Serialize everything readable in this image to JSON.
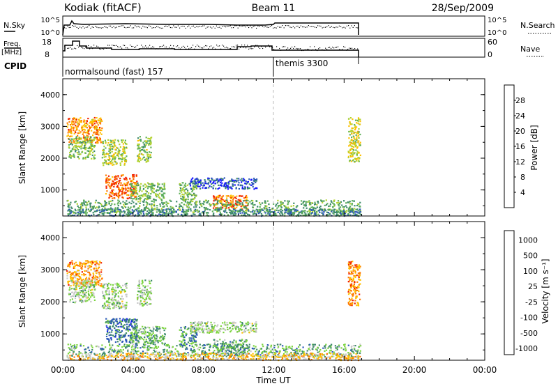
{
  "header": {
    "station": "Kodiak (fitACF)",
    "beam": "Beam 11",
    "date": "28/Sep/2009"
  },
  "top_panels": {
    "nsky": {
      "label": "N.Sky",
      "ticks": [
        "10^5",
        "10^0"
      ]
    },
    "nsearch": {
      "label": "N.Search",
      "ticks": [
        "10^5",
        "10^0"
      ]
    },
    "freq": {
      "label_line1": "Freq.",
      "label_line2": "[MHz]",
      "ticks": [
        "18",
        "8"
      ]
    },
    "nave": {
      "label": "Nave",
      "ticks": [
        "60",
        "0"
      ]
    },
    "cpid": {
      "label": "CPID",
      "modes": [
        {
          "name": "normalsound (fast) 157"
        },
        {
          "name": "themis 3300"
        }
      ]
    }
  },
  "chart_data": [
    {
      "type": "heatmap",
      "title": "",
      "ylabel": "Slant Range [km]",
      "xlabel": "",
      "xlim": [
        0,
        24
      ],
      "ylim": [
        180,
        4500
      ],
      "y_ticks": [
        "1000",
        "2000",
        "3000",
        "4000"
      ],
      "x_ticks": [
        "00:00",
        "04:00",
        "08:00",
        "12:00",
        "16:00",
        "20:00",
        "00:00"
      ],
      "colorbar": {
        "label": "Power [dB]",
        "ticks": [
          "4",
          "8",
          "12",
          "16",
          "20",
          "24",
          "28"
        ],
        "colors": [
          "#1414ff",
          "#2c58b8",
          "#3f8a6b",
          "#5fb05a",
          "#b3d32f",
          "#ffc000",
          "#ff7a00",
          "#f01e00"
        ]
      },
      "regions": [
        {
          "t": [
            0.2,
            2.2
          ],
          "r": [
            2500,
            3300
          ],
          "v": 0.8
        },
        {
          "t": [
            0.3,
            1.8
          ],
          "r": [
            2000,
            2700
          ],
          "v": 0.48
        },
        {
          "t": [
            2.2,
            3.6
          ],
          "r": [
            1800,
            2600
          ],
          "v": 0.55
        },
        {
          "t": [
            2.4,
            4.2
          ],
          "r": [
            750,
            1500
          ],
          "v": 0.92
        },
        {
          "t": [
            3.8,
            5.8
          ],
          "r": [
            700,
            1250
          ],
          "v": 0.45
        },
        {
          "t": [
            4.2,
            5.0
          ],
          "r": [
            1900,
            2700
          ],
          "v": 0.5
        },
        {
          "t": [
            6.6,
            7.6
          ],
          "r": [
            650,
            1250
          ],
          "v": 0.45
        },
        {
          "t": [
            7.2,
            11.0
          ],
          "r": [
            1050,
            1400
          ],
          "v": 0.14
        },
        {
          "t": [
            8.5,
            10.5
          ],
          "r": [
            400,
            850
          ],
          "v": 0.82
        },
        {
          "t": [
            0.2,
            16.9
          ],
          "r": [
            300,
            700
          ],
          "v": 0.4
        },
        {
          "t": [
            0.2,
            16.9
          ],
          "r": [
            200,
            420
          ],
          "v": 0.28
        },
        {
          "t": [
            16.2,
            16.9
          ],
          "r": [
            1900,
            3300
          ],
          "v": 0.62
        }
      ]
    },
    {
      "type": "heatmap",
      "title": "",
      "ylabel": "Slant Range [km]",
      "xlabel": "Time UT",
      "xlim": [
        0,
        24
      ],
      "ylim": [
        180,
        4500
      ],
      "y_ticks": [
        "1000",
        "2000",
        "3000",
        "4000"
      ],
      "x_ticks": [
        "00:00",
        "04:00",
        "08:00",
        "12:00",
        "16:00",
        "20:00",
        "00:00"
      ],
      "colorbar": {
        "label": "Velocity [m s⁻¹]",
        "ticks": [
          "1000",
          "500",
          "100",
          "25",
          "-25",
          "-100",
          "-500",
          "-1000"
        ],
        "colors": [
          "#1414ff",
          "#2c58b8",
          "#3f8a6b",
          "#7cd43f",
          "#c8c8c8",
          "#ffc000",
          "#ff7a00",
          "#f01e00"
        ]
      },
      "regions": [
        {
          "t": [
            0.2,
            2.2
          ],
          "r": [
            2500,
            3300
          ],
          "v": 0.78
        },
        {
          "t": [
            0.3,
            1.8
          ],
          "r": [
            2000,
            2700
          ],
          "v": 0.5
        },
        {
          "t": [
            2.2,
            3.6
          ],
          "r": [
            1800,
            2600
          ],
          "v": 0.48
        },
        {
          "t": [
            2.4,
            4.2
          ],
          "r": [
            750,
            1500
          ],
          "v": 0.22
        },
        {
          "t": [
            3.8,
            5.8
          ],
          "r": [
            700,
            1250
          ],
          "v": 0.38
        },
        {
          "t": [
            4.2,
            5.0
          ],
          "r": [
            1900,
            2700
          ],
          "v": 0.48
        },
        {
          "t": [
            6.6,
            7.6
          ],
          "r": [
            650,
            1250
          ],
          "v": 0.3
        },
        {
          "t": [
            7.2,
            11.0
          ],
          "r": [
            1050,
            1400
          ],
          "v": 0.5
        },
        {
          "t": [
            8.5,
            10.5
          ],
          "r": [
            400,
            850
          ],
          "v": 0.36
        },
        {
          "t": [
            0.2,
            16.9
          ],
          "r": [
            300,
            700
          ],
          "v": 0.36
        },
        {
          "t": [
            0.2,
            16.9
          ],
          "r": [
            200,
            420
          ],
          "v": 0.68
        },
        {
          "t": [
            16.2,
            16.9
          ],
          "r": [
            1900,
            3300
          ],
          "v": 0.82
        }
      ]
    }
  ]
}
